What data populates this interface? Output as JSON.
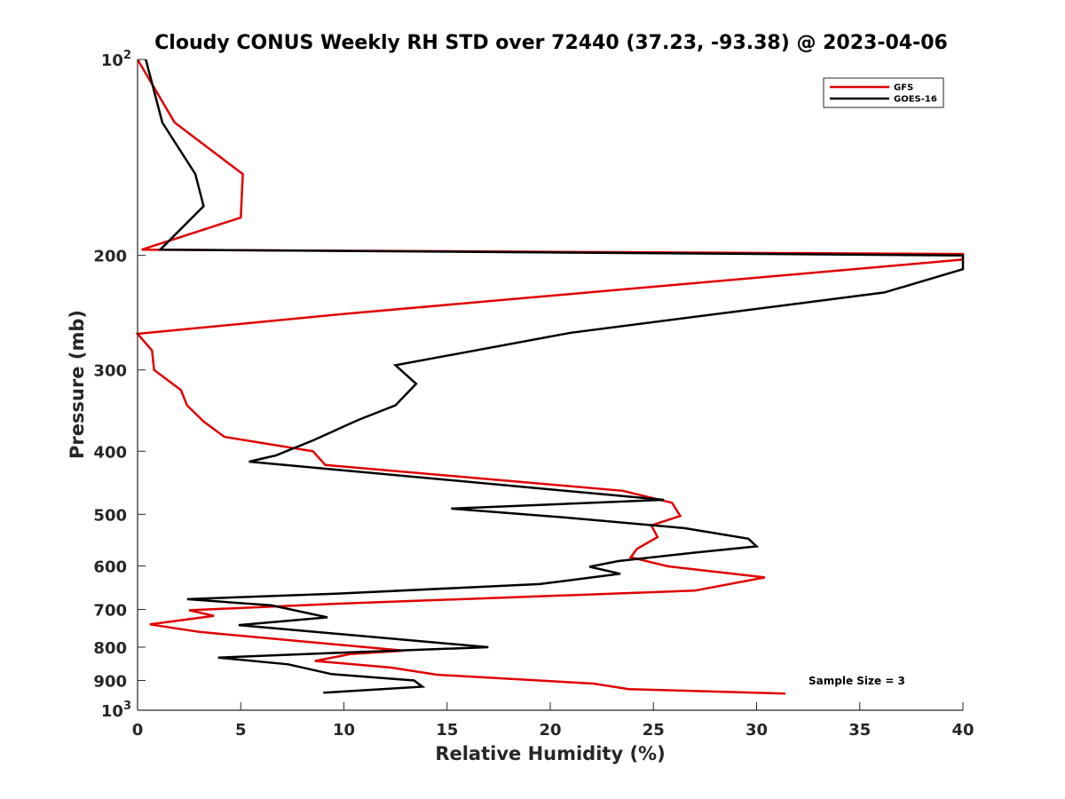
{
  "chart_data": {
    "type": "line",
    "title": "Cloudy CONUS Weekly RH STD over 72440 (37.23, -93.38) @ 2023-04-06",
    "xlabel": "Relative Humidity (%)",
    "ylabel": "Pressure (mb)",
    "xlim": [
      0,
      40
    ],
    "ylim": [
      100,
      1000
    ],
    "y_scale": "log",
    "y_reversed": true,
    "x_ticks": [
      "0",
      "5",
      "10",
      "15",
      "20",
      "25",
      "30",
      "35",
      "40"
    ],
    "y_ticks": [
      {
        "value": 100,
        "base": "10",
        "exp": "2"
      },
      {
        "value": 200,
        "label": "200"
      },
      {
        "value": 300,
        "label": "300"
      },
      {
        "value": 400,
        "label": "400"
      },
      {
        "value": 500,
        "label": "500"
      },
      {
        "value": 600,
        "label": "600"
      },
      {
        "value": 700,
        "label": "700"
      },
      {
        "value": 800,
        "label": "800"
      },
      {
        "value": 900,
        "label": "900"
      },
      {
        "value": 1000,
        "base": "10",
        "exp": "3"
      }
    ],
    "legend_position": "top-right",
    "grid": false,
    "annotation": "Sample Size = 3",
    "series": [
      {
        "name": "GFS",
        "color": "#e00000",
        "points": [
          [
            0.0,
            100
          ],
          [
            1.8,
            125
          ],
          [
            5.1,
            150
          ],
          [
            5.0,
            175
          ],
          [
            0.2,
            196
          ],
          [
            40.0,
            199
          ],
          [
            40.0,
            203
          ],
          [
            10.0,
            246
          ],
          [
            0.0,
            264
          ],
          [
            0.7,
            280
          ],
          [
            0.8,
            300
          ],
          [
            2.1,
            322
          ],
          [
            2.4,
            340
          ],
          [
            3.2,
            360
          ],
          [
            4.2,
            380
          ],
          [
            8.5,
            400
          ],
          [
            9.1,
            420
          ],
          [
            23.5,
            460
          ],
          [
            25.9,
            480
          ],
          [
            26.3,
            503
          ],
          [
            24.9,
            520
          ],
          [
            25.2,
            542
          ],
          [
            24.2,
            565
          ],
          [
            23.9,
            582
          ],
          [
            25.7,
            601
          ],
          [
            30.4,
            625
          ],
          [
            27.0,
            655
          ],
          [
            9.7,
            686
          ],
          [
            2.5,
            702
          ],
          [
            3.7,
            716
          ],
          [
            0.6,
            738
          ],
          [
            3.0,
            758
          ],
          [
            12.9,
            810
          ],
          [
            10.3,
            820
          ],
          [
            8.6,
            840
          ],
          [
            12.3,
            860
          ],
          [
            14.5,
            882
          ],
          [
            22.1,
            910
          ],
          [
            23.8,
            928
          ],
          [
            31.4,
            943
          ]
        ]
      },
      {
        "name": "GOES-16",
        "color": "#000000",
        "points": [
          [
            0.4,
            100
          ],
          [
            1.2,
            125
          ],
          [
            2.8,
            150
          ],
          [
            3.2,
            168
          ],
          [
            1.1,
            196
          ],
          [
            40.0,
            200
          ],
          [
            40.0,
            210
          ],
          [
            36.2,
            228
          ],
          [
            21.0,
            263
          ],
          [
            12.5,
            295
          ],
          [
            13.5,
            315
          ],
          [
            12.5,
            340
          ],
          [
            10.7,
            358
          ],
          [
            8.5,
            385
          ],
          [
            6.7,
            406
          ],
          [
            5.4,
            415
          ],
          [
            25.5,
            475
          ],
          [
            15.2,
            490
          ],
          [
            20.5,
            505
          ],
          [
            26.5,
            525
          ],
          [
            29.6,
            545
          ],
          [
            30.0,
            560
          ],
          [
            27.1,
            572
          ],
          [
            23.3,
            590
          ],
          [
            21.9,
            602
          ],
          [
            23.4,
            617
          ],
          [
            19.5,
            640
          ],
          [
            9.6,
            662
          ],
          [
            2.4,
            675
          ],
          [
            6.5,
            690
          ],
          [
            9.2,
            720
          ],
          [
            4.9,
            740
          ],
          [
            17.0,
            800
          ],
          [
            10.2,
            815
          ],
          [
            3.9,
            830
          ],
          [
            7.3,
            850
          ],
          [
            9.4,
            880
          ],
          [
            13.4,
            900
          ],
          [
            13.8,
            920
          ],
          [
            9.0,
            940
          ]
        ]
      }
    ]
  }
}
